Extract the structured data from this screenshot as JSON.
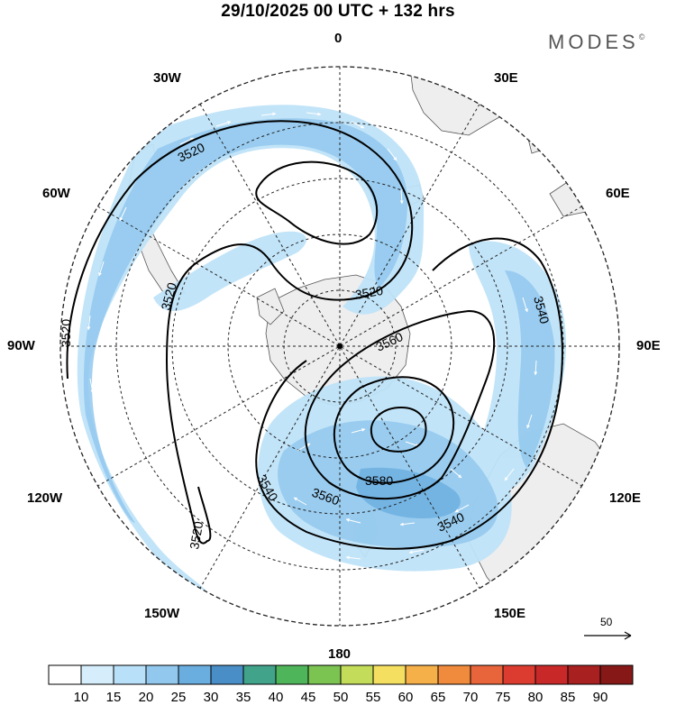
{
  "header": {
    "title": "29/10/2025  00 UTC  + 132 hrs",
    "brand": "MODES",
    "brand_mark": "©"
  },
  "map": {
    "projection": "south-polar-stereographic",
    "longitude_labels": {
      "top": "0",
      "top_right": "30E",
      "right_upper": "60E",
      "right": "90E",
      "right_lower": "120E",
      "bottom_right": "150E",
      "bottom": "180",
      "bottom_left": "150W",
      "left_lower": "120W",
      "left": "90W",
      "left_upper": "60W",
      "top_left": "30W"
    },
    "contour_labels": [
      "3520",
      "3520",
      "3520",
      "3520",
      "3520",
      "3540",
      "3540",
      "3540",
      "3560",
      "3560",
      "3580"
    ],
    "wind_vector_reference": {
      "value": "50"
    }
  },
  "colorbar": {
    "labels": [
      "10",
      "15",
      "20",
      "25",
      "30",
      "35",
      "40",
      "45",
      "50",
      "55",
      "60",
      "65",
      "70",
      "75",
      "80",
      "85",
      "90"
    ],
    "colors": [
      "#ffffff",
      "#d6eefc",
      "#b8e0f8",
      "#92c8ee",
      "#6aaee0",
      "#4a8ec8",
      "#41a38a",
      "#4fb55a",
      "#7cc452",
      "#c3dd5a",
      "#f4df60",
      "#f6b04a",
      "#f08a3c",
      "#e8643a",
      "#dc3c30",
      "#c82828",
      "#a82020",
      "#861818"
    ]
  }
}
